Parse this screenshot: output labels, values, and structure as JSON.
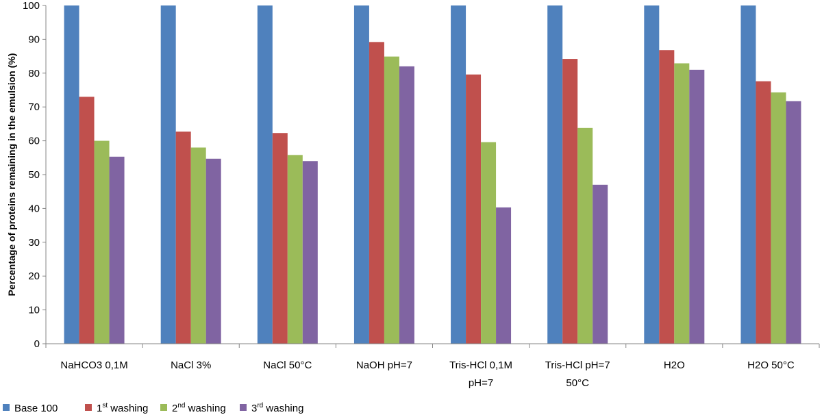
{
  "chart_data": {
    "type": "bar",
    "ylabel": "Percentage of proteins remaining in the emulsion (%)",
    "xlabel": "",
    "ylim": [
      0,
      100
    ],
    "yticks": [
      0,
      10,
      20,
      30,
      40,
      50,
      60,
      70,
      80,
      90,
      100
    ],
    "grid": false,
    "legend_position": "bottom",
    "categories": [
      [
        "NaHCO3 0,1M"
      ],
      [
        "NaCl 3%"
      ],
      [
        "NaCl 50°C"
      ],
      [
        "NaOH pH=7"
      ],
      [
        "Tris-HCl 0,1M",
        "pH=7"
      ],
      [
        "Tris-HCl pH=7",
        "50°C"
      ],
      [
        "H2O"
      ],
      [
        "H2O 50°C"
      ]
    ],
    "series": [
      {
        "name": "Base 100",
        "legend_base": "Base 100",
        "legend_sup": "",
        "legend_rest": "",
        "color": "#4F81BD",
        "values": [
          100,
          100,
          100,
          100,
          100,
          100,
          100,
          100
        ]
      },
      {
        "name": "1st washing",
        "legend_base": "1",
        "legend_sup": "st",
        "legend_rest": " washing",
        "color": "#C0504D",
        "values": [
          73,
          62.7,
          62.3,
          89.2,
          79.6,
          84.2,
          86.8,
          77.6
        ]
      },
      {
        "name": "2nd washing",
        "legend_base": "2",
        "legend_sup": "nd",
        "legend_rest": " washing",
        "color": "#9BBB59",
        "values": [
          60,
          58,
          55.8,
          84.9,
          59.6,
          63.8,
          82.9,
          74.3
        ]
      },
      {
        "name": "3rd washing",
        "legend_base": "3",
        "legend_sup": "rd",
        "legend_rest": " washing",
        "color": "#8064A2",
        "values": [
          55.3,
          54.7,
          54,
          82,
          40.3,
          47,
          81,
          71.7
        ]
      }
    ]
  }
}
